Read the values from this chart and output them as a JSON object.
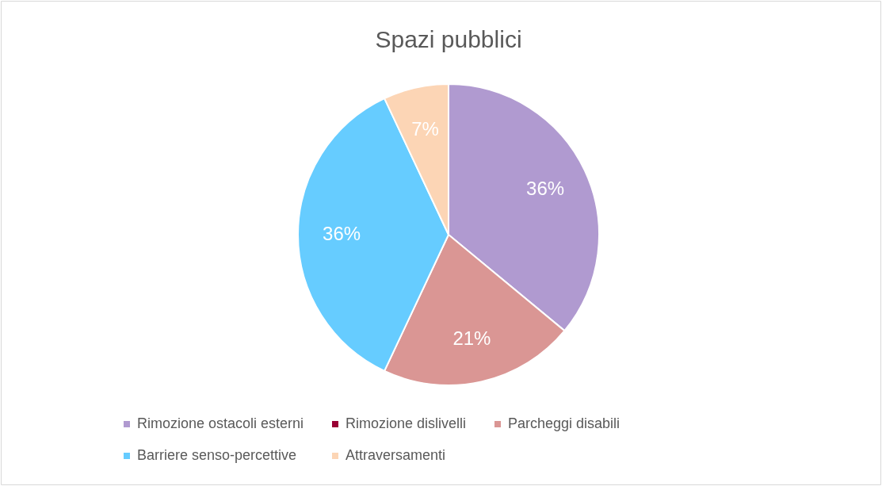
{
  "chart_data": {
    "type": "pie",
    "title": "Spazi pubblici",
    "categories": [
      "Rimozione ostacoli esterni",
      "Rimozione dislivelli",
      "Parcheggi disabili",
      "Barriere senso-percettive",
      "Attraversamenti"
    ],
    "values": [
      36,
      0,
      21,
      36,
      7
    ],
    "colors": [
      "#b09ad0",
      "#990033",
      "#da9694",
      "#66ccff",
      "#fcd5b5"
    ],
    "value_labels": [
      "36%",
      null,
      "21%",
      "36%",
      "7%"
    ],
    "legend": "bottom"
  }
}
